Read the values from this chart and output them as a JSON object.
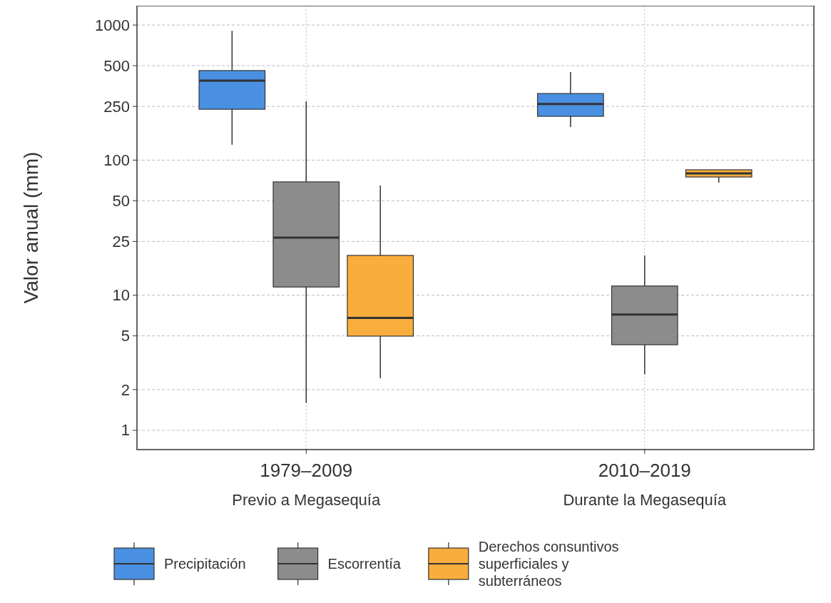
{
  "chart_data": {
    "type": "box",
    "ylabel": "Valor anual (mm)",
    "categories": [
      "1979–2009\nPrevio a Megasequía",
      "2010–2019\nDurante la Megasequía"
    ],
    "log": true,
    "ylim": [
      0.72,
      1390
    ],
    "yticks": [
      1,
      2,
      5,
      10,
      25,
      50,
      100,
      250,
      500,
      1000
    ],
    "grid": true,
    "legend": "bottom",
    "series": [
      {
        "name": "Precipitación",
        "color": "#4a90e2",
        "boxes": [
          {
            "low": 130,
            "q1": 238,
            "median": 388,
            "q3": 460,
            "high": 908
          },
          {
            "low": 176,
            "q1": 211,
            "median": 260,
            "q3": 311,
            "high": 449
          }
        ]
      },
      {
        "name": "Escorrentía",
        "color": "#8c8c8c",
        "boxes": [
          {
            "low": 1.6,
            "q1": 11.5,
            "median": 26.7,
            "q3": 69,
            "high": 272
          },
          {
            "low": 2.6,
            "q1": 4.3,
            "median": 7.2,
            "q3": 11.7,
            "high": 19.7
          }
        ]
      },
      {
        "name": "Derechos consuntivos superficiales y subterráneos",
        "color": "#f9ad3c",
        "boxes": [
          {
            "low": 2.43,
            "q1": 4.98,
            "median": 6.8,
            "q3": 19.7,
            "high": 64.9
          },
          {
            "low": 68,
            "q1": 75,
            "median": 79.7,
            "q3": 84.8,
            "high": 85
          }
        ]
      }
    ]
  }
}
